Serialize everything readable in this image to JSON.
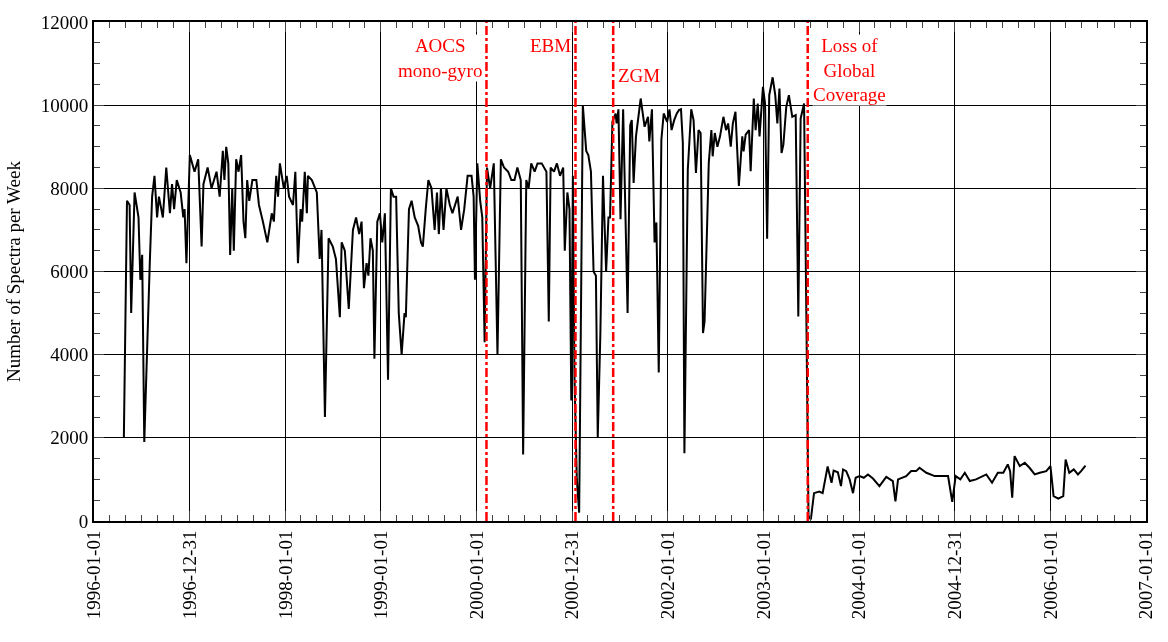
{
  "chart_data": {
    "type": "line",
    "ylabel": "Number of Spectra per Week",
    "x": [
      "1996-04-24",
      "1996-05-06",
      "1996-05-16",
      "1996-05-22",
      "1996-06-04",
      "1996-06-19",
      "1996-06-26",
      "1996-07-03",
      "1996-07-11",
      "1996-08-01",
      "1996-08-10",
      "1996-08-19",
      "1996-08-29",
      "1996-09-05",
      "1996-09-20",
      "1996-10-03",
      "1996-10-17",
      "1996-10-25",
      "1996-11-02",
      "1996-11-12",
      "1996-11-27",
      "1996-12-07",
      "1996-12-12",
      "1996-12-19",
      "1997-01-01",
      "1997-01-19",
      "1997-02-02",
      "1997-02-15",
      "1997-02-22",
      "1997-03-10",
      "1997-03-25",
      "1997-04-13",
      "1997-04-25",
      "1997-05-07",
      "1997-05-13",
      "1997-05-20",
      "1997-05-28",
      "1997-06-04",
      "1997-06-12",
      "1997-06-18",
      "1997-06-27",
      "1997-07-06",
      "1997-07-16",
      "1997-07-25",
      "1997-08-01",
      "1997-08-08",
      "1997-08-16",
      "1997-08-28",
      "1997-09-12",
      "1997-09-22",
      "1997-10-07",
      "1997-10-24",
      "1997-11-10",
      "1997-11-18",
      "1997-11-27",
      "1997-12-04",
      "1997-12-11",
      "1997-12-26",
      "1998-01-06",
      "1998-01-15",
      "1998-01-30",
      "1998-02-08",
      "1998-02-18",
      "1998-02-28",
      "1998-03-06",
      "1998-03-16",
      "1998-03-24",
      "1998-03-28",
      "1998-04-12",
      "1998-05-01",
      "1998-05-12",
      "1998-05-19",
      "1998-06-01",
      "1998-06-15",
      "1998-07-01",
      "1998-07-13",
      "1998-07-28",
      "1998-08-04",
      "1998-08-16",
      "1998-08-31",
      "1998-09-16",
      "1998-09-28",
      "1998-10-10",
      "1998-10-19",
      "1998-10-28",
      "1998-11-07",
      "1998-11-14",
      "1998-11-22",
      "1998-12-01",
      "1998-12-07",
      "1998-12-18",
      "1998-12-28",
      "1999-01-06",
      "1999-01-16",
      "1999-01-28",
      "1999-02-08",
      "1999-02-18",
      "1999-02-28",
      "1999-03-10",
      "1999-03-21",
      "1999-04-01",
      "1999-04-06",
      "1999-04-18",
      "1999-04-28",
      "1999-05-10",
      "1999-05-23",
      "1999-06-03",
      "1999-06-10",
      "1999-06-21",
      "1999-07-01",
      "1999-07-13",
      "1999-07-25",
      "1999-08-03",
      "1999-08-10",
      "1999-08-18",
      "1999-08-28",
      "1999-09-08",
      "1999-09-21",
      "1999-10-01",
      "1999-10-21",
      "1999-11-03",
      "1999-11-15",
      "1999-11-28",
      "1999-12-13",
      "1999-12-21",
      "1999-12-26",
      "2000-01-04",
      "2000-01-15",
      "2000-01-23",
      "2000-02-01",
      "2000-02-10",
      "2000-02-22",
      "2000-03-07",
      "2000-03-21",
      "2000-04-03",
      "2000-04-15",
      "2000-05-01",
      "2000-05-13",
      "2000-05-25",
      "2000-06-05",
      "2000-06-18",
      "2000-06-27",
      "2000-07-09",
      "2000-07-18",
      "2000-07-28",
      "2000-08-10",
      "2000-08-21",
      "2000-09-06",
      "2000-09-24",
      "2000-10-03",
      "2000-10-10",
      "2000-10-23",
      "2000-11-03",
      "2000-11-15",
      "2000-11-27",
      "2000-12-03",
      "2000-12-13",
      "2000-12-21",
      "2000-12-28",
      "2001-01-03",
      "2001-01-09",
      "2001-01-18",
      "2001-01-27",
      "2001-02-10",
      "2001-02-23",
      "2001-03-03",
      "2001-03-13",
      "2001-03-23",
      "2001-04-01",
      "2001-04-08",
      "2001-04-18",
      "2001-04-28",
      "2001-05-10",
      "2001-05-19",
      "2001-05-25",
      "2001-06-03",
      "2001-06-15",
      "2001-06-19",
      "2001-06-26",
      "2001-07-04",
      "2001-07-14",
      "2001-07-31",
      "2001-08-10",
      "2001-08-16",
      "2001-08-23",
      "2001-09-01",
      "2001-09-19",
      "2001-10-04",
      "2001-10-17",
      "2001-10-22",
      "2001-11-01",
      "2001-11-11",
      "2001-11-18",
      "2001-11-27",
      "2001-12-07",
      "2001-12-16",
      "2001-12-29",
      "2002-01-07",
      "2002-01-15",
      "2002-01-25",
      "2002-02-04",
      "2002-02-12",
      "2002-02-20",
      "2002-02-27",
      "2002-03-05",
      "2002-03-18",
      "2002-03-31",
      "2002-04-09",
      "2002-04-18",
      "2002-04-28",
      "2002-05-06",
      "2002-05-15",
      "2002-05-21",
      "2002-06-06",
      "2002-06-16",
      "2002-06-21",
      "2002-06-29",
      "2002-07-09",
      "2002-07-19",
      "2002-08-01",
      "2002-08-11",
      "2002-08-19",
      "2002-08-29",
      "2002-09-06",
      "2002-09-16",
      "2002-09-29",
      "2002-10-12",
      "2002-10-17",
      "2002-10-25",
      "2002-11-07",
      "2002-11-13",
      "2002-11-25",
      "2002-12-02",
      "2002-12-10",
      "2002-12-17",
      "2002-12-30",
      "2003-01-07",
      "2003-01-15",
      "2003-01-23",
      "2003-02-05",
      "2003-02-15",
      "2003-02-23",
      "2003-03-03",
      "2003-03-11",
      "2003-03-18",
      "2003-03-29",
      "2003-04-08",
      "2003-04-21",
      "2003-05-04",
      "2003-05-14",
      "2003-05-23",
      "2003-06-05",
      "2003-06-22",
      "2003-07-01",
      "2003-07-13",
      "2003-08-02",
      "2003-08-15",
      "2003-09-03",
      "2003-09-18",
      "2003-09-26",
      "2003-10-12",
      "2003-10-24",
      "2003-11-01",
      "2003-11-13",
      "2003-11-26",
      "2003-12-09",
      "2003-12-19",
      "2004-01-03",
      "2004-01-19",
      "2004-02-04",
      "2004-02-23",
      "2004-03-19",
      "2004-04-14",
      "2004-05-09",
      "2004-05-19",
      "2004-05-29",
      "2004-06-29",
      "2004-07-18",
      "2004-08-06",
      "2004-08-19",
      "2004-09-14",
      "2004-10-16",
      "2004-11-17",
      "2004-12-06",
      "2004-12-22",
      "2005-01-04",
      "2005-01-22",
      "2005-02-08",
      "2005-02-27",
      "2005-03-23",
      "2005-05-01",
      "2005-05-23",
      "2005-06-14",
      "2005-07-05",
      "2005-07-22",
      "2005-07-31",
      "2005-08-08",
      "2005-08-17",
      "2005-09-06",
      "2005-09-25",
      "2005-10-13",
      "2005-11-02",
      "2005-11-21",
      "2005-12-16",
      "2006-01-01",
      "2006-01-13",
      "2006-01-31",
      "2006-02-19",
      "2006-02-28",
      "2006-03-14",
      "2006-03-31",
      "2006-04-16",
      "2006-04-28",
      "2006-05-15"
    ],
    "series": [
      {
        "color": "#000000",
        "values": [
          2000,
          7700,
          7600,
          5000,
          7900,
          7300,
          5800,
          6400,
          1900,
          6200,
          7800,
          8300,
          7300,
          7800,
          7300,
          8500,
          7400,
          8100,
          7500,
          8200,
          7900,
          7300,
          7500,
          6200,
          8800,
          8400,
          8700,
          6600,
          8100,
          8500,
          8000,
          8400,
          7800,
          8900,
          8200,
          9000,
          8600,
          6400,
          8000,
          6500,
          8700,
          8400,
          8800,
          7200,
          6800,
          8200,
          7700,
          8200,
          8200,
          7600,
          7200,
          6700,
          7400,
          7200,
          8300,
          7800,
          8600,
          8000,
          8300,
          7800,
          7600,
          8400,
          6200,
          7500,
          7200,
          8400,
          7400,
          8300,
          8200,
          7900,
          6300,
          7000,
          2500,
          6800,
          6600,
          6300,
          4900,
          6700,
          6500,
          5100,
          7000,
          7300,
          6900,
          7200,
          5600,
          6200,
          5900,
          6800,
          6500,
          3900,
          7200,
          7400,
          6700,
          7400,
          3400,
          8000,
          7800,
          7800,
          5000,
          4000,
          5000,
          4900,
          7500,
          7700,
          7300,
          7100,
          6700,
          6600,
          7500,
          8200,
          8000,
          7000,
          7900,
          6900,
          8000,
          7000,
          8000,
          7600,
          7400,
          7800,
          7000,
          7500,
          8300,
          8300,
          7800,
          5800,
          8600,
          7700,
          7300,
          4300,
          8500,
          8000,
          8600,
          4000,
          8700,
          8500,
          8400,
          8200,
          8200,
          8500,
          8200,
          1600,
          8200,
          8000,
          8600,
          8400,
          8600,
          8600,
          8400,
          4800,
          8500,
          8400,
          8600,
          8300,
          8500,
          6500,
          7900,
          7500,
          2900,
          8300,
          3500,
          1000,
          200,
          10000,
          8900,
          8800,
          8400,
          6000,
          5900,
          2000,
          4500,
          8300,
          6000,
          7300,
          7300,
          9600,
          9800,
          9560,
          9900,
          7260,
          9900,
          5000,
          9520,
          9640,
          8130,
          9250,
          10160,
          9480,
          9720,
          9130,
          9900,
          6700,
          7180,
          3570,
          9170,
          9800,
          9600,
          9900,
          9400,
          9640,
          9800,
          9880,
          9900,
          9090,
          1630,
          8450,
          9900,
          9640,
          8370,
          9400,
          9330,
          4520,
          4800,
          8610,
          9400,
          8770,
          9330,
          9000,
          9250,
          9720,
          9400,
          9560,
          9000,
          9560,
          9840,
          8060,
          9250,
          8890,
          9290,
          9400,
          8410,
          10160,
          9400,
          10040,
          9250,
          10440,
          10040,
          6790,
          10240,
          10670,
          10240,
          9560,
          10400,
          8850,
          9050,
          9960,
          10240,
          9720,
          9760,
          4920,
          9680,
          10040,
          120,
          40,
          670,
          710,
          670,
          1310,
          920,
          1210,
          1170,
          840,
          1240,
          1200,
          1000,
          670,
          1040,
          1080,
          1040,
          1120,
          1020,
          840,
          1060,
          960,
          470,
          1000,
          1080,
          1200,
          1200,
          1280,
          1160,
          1080,
          1080,
          1080,
          460,
          1080,
          1000,
          1160,
          960,
          1000,
          1120,
          920,
          1160,
          1160,
          1360,
          1200,
          560,
          1560,
          1320,
          1400,
          1280,
          1120,
          1160,
          1200,
          1320,
          600,
          540,
          600,
          1480,
          1160,
          1240,
          1120,
          1200,
          1330
        ]
      }
    ],
    "xlim": [
      "1996-01-01",
      "2007-01-01"
    ],
    "xticks": [
      "1996-01-01",
      "1996-12-31",
      "1998-01-01",
      "1999-01-01",
      "2000-01-01",
      "2000-12-31",
      "2002-01-01",
      "2003-01-01",
      "2004-01-01",
      "2004-12-31",
      "2006-01-01",
      "2007-01-01"
    ],
    "ylim": [
      0,
      12000
    ],
    "yticks": [
      0,
      2000,
      4000,
      6000,
      8000,
      10000,
      12000
    ],
    "grid": true,
    "marker": "none",
    "line_style": "solid",
    "ref_lines": [
      {
        "axis": "x",
        "value": "2000-02-08",
        "label": "AOCS\nmono-gyro",
        "color": "#ff0000",
        "line_style": "dashdot"
      },
      {
        "axis": "x",
        "value": "2001-01-13",
        "label": "EBM",
        "color": "#ff0000",
        "line_style": "dashdot"
      },
      {
        "axis": "x",
        "value": "2001-06-06",
        "label": "ZGM",
        "color": "#ff0000",
        "line_style": "dashdot"
      },
      {
        "axis": "x",
        "value": "2003-06-19",
        "label": "Loss of\nGlobal\nCoverage",
        "color": "#ff0000",
        "line_style": "dashdot"
      }
    ]
  }
}
